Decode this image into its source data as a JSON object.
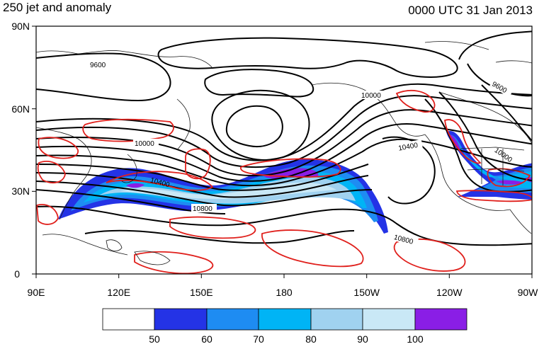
{
  "header": {
    "title_left": "250 jet and anomaly",
    "title_right": "0000 UTC 31 Jan 2013"
  },
  "map": {
    "projection": "cylindrical equidistant",
    "lon_range": [
      90,
      270
    ],
    "lat_range": [
      0,
      90
    ],
    "lat_ticks": [
      {
        "value": 90,
        "label": "90N"
      },
      {
        "value": 60,
        "label": "60N"
      },
      {
        "value": 30,
        "label": "30N"
      },
      {
        "value": 0,
        "label": "0"
      }
    ],
    "lon_ticks": [
      {
        "value": 90,
        "label": "90E"
      },
      {
        "value": 120,
        "label": "120E"
      },
      {
        "value": 150,
        "label": "150E"
      },
      {
        "value": 180,
        "label": "180"
      },
      {
        "value": 210,
        "label": "150W"
      },
      {
        "value": 240,
        "label": "120W"
      },
      {
        "value": 270,
        "label": "90W"
      }
    ],
    "contour_labels": [
      "9600",
      "9600",
      "10000",
      "10000",
      "10400",
      "10400",
      "10000",
      "10800",
      "10800"
    ],
    "colors": {
      "height_contour": "#000000",
      "anomaly_contour": "#e0201c",
      "coastline": "#1a1a1a"
    }
  },
  "colorbar": {
    "levels": [
      "50",
      "60",
      "70",
      "80",
      "90",
      "100"
    ],
    "colors": [
      "#ffffff",
      "#2433e6",
      "#1e8cf2",
      "#00b4f5",
      "#a0d2f0",
      "#c9e8f6",
      "#8a1ee6"
    ]
  }
}
